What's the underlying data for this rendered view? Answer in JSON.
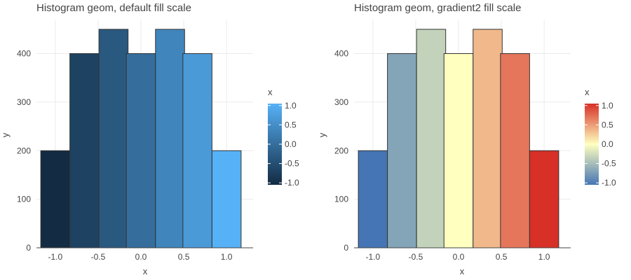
{
  "chart_data": [
    {
      "type": "bar",
      "subtype": "histogram",
      "title": "Histogram geom, default fill scale",
      "xlabel": "x",
      "ylabel": "y",
      "x_ticks": [
        "-1.0",
        "-0.5",
        "0.0",
        "0.5",
        "1.0"
      ],
      "y_ticks": [
        "0",
        "100",
        "200",
        "300",
        "400"
      ],
      "xlim": [
        -1.22,
        1.31
      ],
      "ylim": [
        0,
        470
      ],
      "grid": true,
      "bins": [
        {
          "x": -1.0,
          "width": 0.34,
          "y": 200,
          "fill_value": -1.0
        },
        {
          "x": -0.66,
          "width": 0.34,
          "y": 400,
          "fill_value": -0.66
        },
        {
          "x": -0.32,
          "width": 0.34,
          "y": 450,
          "fill_value": -0.32
        },
        {
          "x": 0.0,
          "width": 0.34,
          "y": 400,
          "fill_value": 0.0
        },
        {
          "x": 0.34,
          "width": 0.34,
          "y": 450,
          "fill_value": 0.34
        },
        {
          "x": 0.66,
          "width": 0.34,
          "y": 400,
          "fill_value": 0.66
        },
        {
          "x": 1.0,
          "width": 0.34,
          "y": 200,
          "fill_value": 1.0
        }
      ],
      "legend": {
        "title": "x",
        "labels": [
          "1.0",
          "0.5",
          "0.0",
          "-0.5",
          "-1.0"
        ],
        "values": [
          1.0,
          0.5,
          0.0,
          -0.5,
          -1.0
        ],
        "placement": "right",
        "scale": "gradient",
        "colors": {
          "low": "#132b43",
          "high": "#56b1f7"
        }
      }
    },
    {
      "type": "bar",
      "subtype": "histogram",
      "title": "Histogram geom, gradient2 fill scale",
      "xlabel": "x",
      "ylabel": "y",
      "x_ticks": [
        "-1.0",
        "-0.5",
        "0.0",
        "0.5",
        "1.0"
      ],
      "y_ticks": [
        "0",
        "100",
        "200",
        "300",
        "400"
      ],
      "xlim": [
        -1.22,
        1.31
      ],
      "ylim": [
        0,
        470
      ],
      "grid": true,
      "bins": [
        {
          "x": -1.0,
          "width": 0.34,
          "y": 200,
          "fill_value": -1.0
        },
        {
          "x": -0.66,
          "width": 0.34,
          "y": 400,
          "fill_value": -0.66
        },
        {
          "x": -0.32,
          "width": 0.34,
          "y": 450,
          "fill_value": -0.32
        },
        {
          "x": 0.0,
          "width": 0.34,
          "y": 400,
          "fill_value": 0.0
        },
        {
          "x": 0.34,
          "width": 0.34,
          "y": 450,
          "fill_value": 0.34
        },
        {
          "x": 0.66,
          "width": 0.34,
          "y": 400,
          "fill_value": 0.66
        },
        {
          "x": 1.0,
          "width": 0.34,
          "y": 200,
          "fill_value": 1.0
        }
      ],
      "legend": {
        "title": "x",
        "labels": [
          "1.0",
          "0.5",
          "0.0",
          "-0.5",
          "-1.0"
        ],
        "values": [
          1.0,
          0.5,
          0.0,
          -0.5,
          -1.0
        ],
        "placement": "right",
        "scale": "gradient2",
        "colors": {
          "low": "#4575b4",
          "mid": "#ffffbf",
          "high": "#d73027"
        }
      }
    }
  ]
}
